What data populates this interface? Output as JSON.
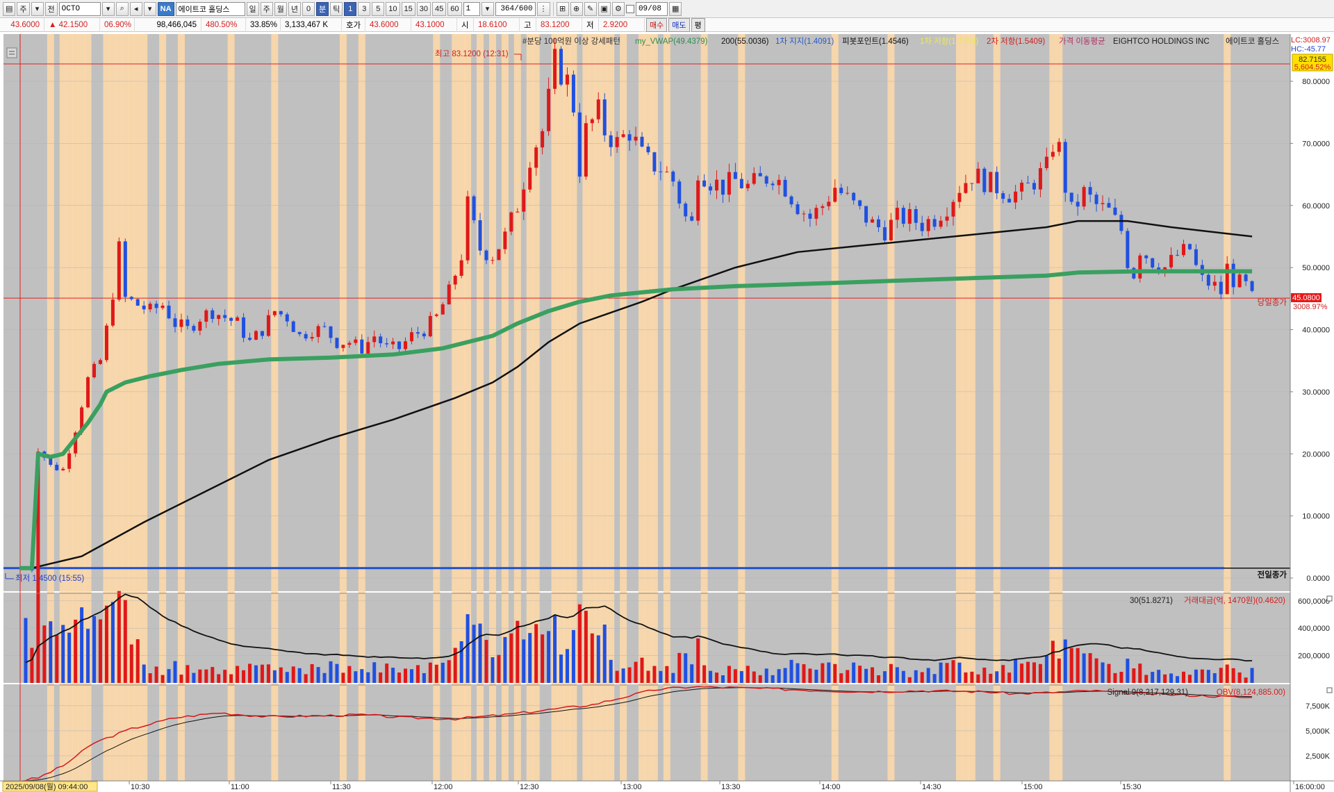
{
  "toolbar": {
    "period_label": "주",
    "scope_label": "전",
    "symbol": "OCTO",
    "market_badge": "NA",
    "company_name": "에이트코 홀딩스",
    "tf_day": "일",
    "tf_week": "주",
    "tf_month": "월",
    "tf_year": "년",
    "tf_zero": "0",
    "tf_minute": "분",
    "tf_tick": "틱",
    "intervals": [
      "1",
      "3",
      "5",
      "10",
      "15",
      "30",
      "45",
      "60"
    ],
    "multiplier": "1",
    "count_display": "364",
    "count_total": "/600",
    "date": "09/08",
    "buy_label": "매수",
    "sell_label": "매도",
    "eval_label": "평"
  },
  "quote": {
    "price": "43.6000",
    "change": "▲ 42.1500",
    "change_pct_small": "06.90%",
    "volume": "98,466,045",
    "change_pct": "480.50%",
    "ratio": "33.85%",
    "trade_value": "3,133,467 K",
    "bid_label": "호가",
    "ask": "43.6000",
    "bid": "43.1000",
    "open_label": "시",
    "open": "18.6100",
    "high_label": "고",
    "high": "83.1200",
    "low_label": "저",
    "low": "2.9200"
  },
  "legend": {
    "pattern": "#분당 100억원 이상 강세패턴",
    "vwap": "my_VWAP(49.4379)",
    "ma200": "200(55.0036)",
    "support1": "1차 지지(1.4091)",
    "pivot": "피봇포인트(1.4546)",
    "resist1": "1차 저항(1.4954)",
    "resist2": "2차 저항(1.5409)",
    "price_ma": "가격 이동평균",
    "company_en": "EIGHTCO HOLDINGS INC",
    "company_kr": "에이트코 홀딩스"
  },
  "price_labels": {
    "lc": "LC:3008.97",
    "hc": "HC:-45.77",
    "hi_box": "82.7155",
    "hi_box_pct": "5,604.52%",
    "high_marker": "최고 83.1200 (12:31)",
    "low_marker": "최저 1.4500 (15:55)",
    "current_box": "45.0800",
    "current_pct": "3008.97%",
    "today_close_label": "당일종가",
    "prev_close_label": "전일종가"
  },
  "volume_legend": {
    "ma": "30(51.8271)",
    "value": "거래대금(억, 1470원)(0.4620)"
  },
  "obv_legend": {
    "signal": "Signal 9(8,217,129.31)",
    "obv": "OBV(8,124,885.00)"
  },
  "colors": {
    "up": "#e01818",
    "down": "#2050e0",
    "vwap": "#3aa060",
    "ma200": "#101010",
    "highlight": "#ffd9a8",
    "panel_bg": "#c0c0c0",
    "prev_close": "#1e50c8"
  },
  "chart_data": {
    "type": "candlestick",
    "title": "#분당 100억원 이상 강세패턴",
    "x_ticks": [
      "2025/09/08(월) 09:44:00",
      "10:30",
      "11:00",
      "11:30",
      "12:00",
      "12:30",
      "13:00",
      "13:30",
      "14:00",
      "14:30",
      "15:00",
      "15:30",
      "16:00:00"
    ],
    "y_ticks": [
      "0.0000",
      "10.0000",
      "20.0000",
      "30.0000",
      "40.0000",
      "50.0000",
      "60.0000",
      "70.0000",
      "80.0000"
    ],
    "ylim": [
      0,
      87
    ],
    "volume_y_ticks": [
      "200,0000",
      "400,0000",
      "600,0000"
    ],
    "obv_y_ticks": [
      "2,500K",
      "5,000K",
      "7,500K"
    ],
    "price_path": [
      [
        0,
        1.6
      ],
      [
        2,
        1.6
      ],
      [
        3,
        21
      ],
      [
        5,
        18
      ],
      [
        7,
        17.5
      ],
      [
        9,
        24
      ],
      [
        11,
        32
      ],
      [
        13,
        35
      ],
      [
        14,
        40
      ],
      [
        15,
        46
      ],
      [
        16,
        53
      ],
      [
        17,
        45
      ],
      [
        19,
        44
      ],
      [
        21,
        43
      ],
      [
        23,
        44
      ],
      [
        25,
        41
      ],
      [
        27,
        40
      ],
      [
        29,
        42
      ],
      [
        31,
        43
      ],
      [
        33,
        42
      ],
      [
        35,
        41
      ],
      [
        37,
        38
      ],
      [
        39,
        40
      ],
      [
        41,
        43
      ],
      [
        43,
        42
      ],
      [
        45,
        39
      ],
      [
        47,
        40
      ],
      [
        49,
        40
      ],
      [
        51,
        38
      ],
      [
        53,
        38
      ],
      [
        55,
        37
      ],
      [
        57,
        39
      ],
      [
        59,
        37
      ],
      [
        61,
        37
      ],
      [
        63,
        39
      ],
      [
        65,
        40
      ],
      [
        67,
        42
      ],
      [
        69,
        46
      ],
      [
        71,
        52
      ],
      [
        72,
        60
      ],
      [
        74,
        53
      ],
      [
        76,
        52
      ],
      [
        78,
        55
      ],
      [
        80,
        60
      ],
      [
        82,
        68
      ],
      [
        84,
        72
      ],
      [
        85,
        77
      ],
      [
        86,
        83
      ],
      [
        88,
        80
      ],
      [
        89,
        76
      ],
      [
        90,
        66
      ],
      [
        91,
        72
      ],
      [
        93,
        75
      ],
      [
        94,
        72
      ],
      [
        96,
        70
      ],
      [
        98,
        72
      ],
      [
        100,
        68
      ],
      [
        101,
        67
      ],
      [
        103,
        66
      ],
      [
        105,
        64
      ],
      [
        107,
        58
      ],
      [
        108,
        57
      ],
      [
        109,
        66
      ],
      [
        111,
        64
      ],
      [
        113,
        63
      ],
      [
        115,
        64
      ],
      [
        117,
        63
      ],
      [
        119,
        64
      ],
      [
        121,
        65
      ],
      [
        123,
        63
      ],
      [
        125,
        60
      ],
      [
        127,
        58
      ],
      [
        129,
        60
      ],
      [
        131,
        63
      ],
      [
        133,
        61
      ],
      [
        135,
        59
      ],
      [
        137,
        57
      ],
      [
        139,
        56
      ],
      [
        141,
        58
      ],
      [
        143,
        58
      ],
      [
        145,
        57
      ],
      [
        147,
        58
      ],
      [
        149,
        60
      ],
      [
        151,
        63
      ],
      [
        153,
        65
      ],
      [
        155,
        64
      ],
      [
        157,
        63
      ],
      [
        159,
        62
      ],
      [
        161,
        62
      ],
      [
        163,
        64
      ],
      [
        165,
        66
      ],
      [
        166,
        70
      ],
      [
        167,
        69
      ],
      [
        168,
        63
      ],
      [
        169,
        59
      ],
      [
        171,
        62
      ],
      [
        173,
        60
      ],
      [
        175,
        59
      ],
      [
        177,
        56
      ],
      [
        178,
        51
      ],
      [
        179,
        49
      ],
      [
        180,
        53
      ],
      [
        182,
        51
      ],
      [
        184,
        50
      ],
      [
        186,
        52
      ],
      [
        188,
        53
      ],
      [
        189,
        50
      ],
      [
        190,
        48
      ],
      [
        192,
        47
      ],
      [
        193,
        46
      ],
      [
        194,
        50
      ],
      [
        195,
        48
      ],
      [
        197,
        47
      ],
      [
        198,
        45.1
      ]
    ],
    "vwap_path": [
      [
        0,
        1.6
      ],
      [
        2,
        1.6
      ],
      [
        3,
        20
      ],
      [
        5,
        19.5
      ],
      [
        7,
        20
      ],
      [
        9,
        22.5
      ],
      [
        11,
        25
      ],
      [
        13,
        28
      ],
      [
        14,
        30
      ],
      [
        17,
        31.5
      ],
      [
        21,
        32.5
      ],
      [
        26,
        33.5
      ],
      [
        32,
        34.5
      ],
      [
        40,
        35.2
      ],
      [
        50,
        35.5
      ],
      [
        60,
        36
      ],
      [
        68,
        37
      ],
      [
        72,
        38
      ],
      [
        76,
        39
      ],
      [
        80,
        41
      ],
      [
        85,
        43
      ],
      [
        90,
        44.5
      ],
      [
        95,
        45.5
      ],
      [
        105,
        46.5
      ],
      [
        115,
        47
      ],
      [
        130,
        47.5
      ],
      [
        150,
        48.2
      ],
      [
        165,
        48.7
      ],
      [
        170,
        49.2
      ],
      [
        180,
        49.4
      ],
      [
        198,
        49.4
      ]
    ],
    "ma200_path": [
      [
        2,
        1.6
      ],
      [
        10,
        3.5
      ],
      [
        20,
        9
      ],
      [
        30,
        14
      ],
      [
        40,
        19
      ],
      [
        50,
        22.5
      ],
      [
        60,
        25.5
      ],
      [
        70,
        29
      ],
      [
        76,
        31.5
      ],
      [
        80,
        34
      ],
      [
        85,
        38
      ],
      [
        90,
        41
      ],
      [
        100,
        44.5
      ],
      [
        105,
        46.5
      ],
      [
        115,
        50
      ],
      [
        125,
        52.5
      ],
      [
        135,
        53.5
      ],
      [
        145,
        54.5
      ],
      [
        155,
        55.5
      ],
      [
        165,
        56.5
      ],
      [
        170,
        57.5
      ],
      [
        178,
        57.5
      ],
      [
        185,
        56.5
      ],
      [
        198,
        55.0
      ]
    ],
    "highlight_bars": [
      5,
      7,
      8,
      9,
      10,
      11,
      14,
      15,
      16,
      17,
      18,
      19,
      20,
      23,
      26,
      34,
      41,
      52,
      55,
      67,
      70,
      71,
      72,
      74,
      76,
      78,
      80,
      82,
      83,
      86,
      87,
      88,
      89,
      91,
      92,
      93,
      94,
      95,
      97,
      100,
      101,
      102,
      104,
      110,
      116,
      131,
      140,
      151,
      152,
      153,
      157,
      166,
      167,
      194
    ]
  }
}
